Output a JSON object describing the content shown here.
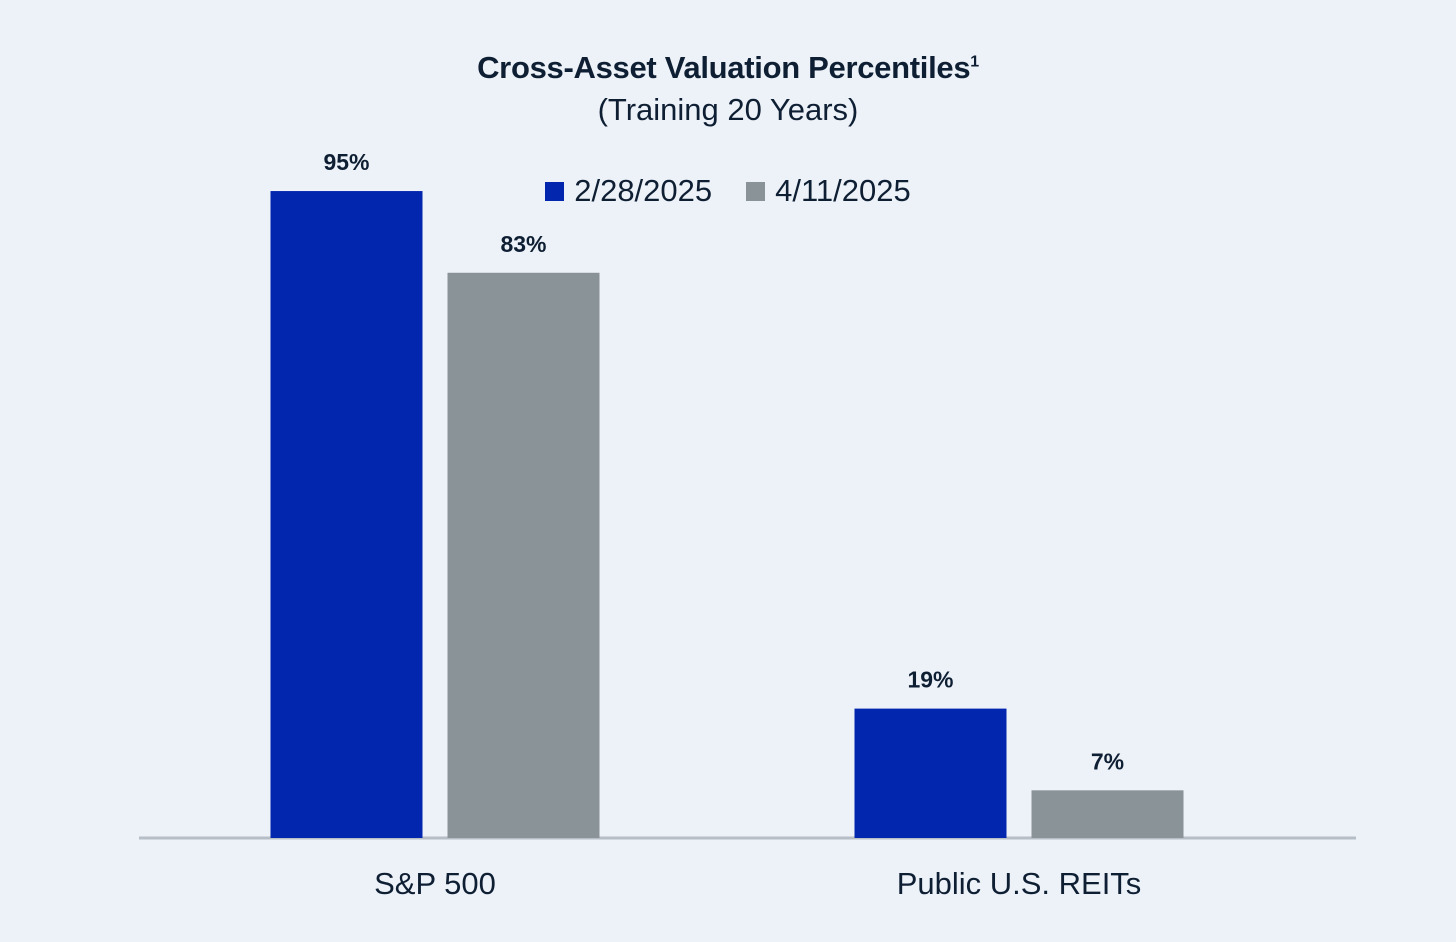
{
  "chart_data": {
    "type": "bar",
    "title": "Cross-Asset Valuation Percentiles",
    "title_superscript": "1",
    "subtitle": "(Training 20 Years)",
    "categories": [
      "S&P 500",
      "Public U.S. REITs"
    ],
    "series": [
      {
        "name": "2/28/2025",
        "color": "#0226ad",
        "values": [
          95,
          19
        ],
        "labels": [
          "95%",
          "19%"
        ]
      },
      {
        "name": "4/11/2025",
        "color": "#8a9398",
        "values": [
          83,
          7
        ],
        "labels": [
          "83%",
          "7%"
        ]
      }
    ],
    "ylim": [
      0,
      100
    ],
    "legend_position": "top-center",
    "grid": false,
    "axis_color": "#b7bec6"
  }
}
